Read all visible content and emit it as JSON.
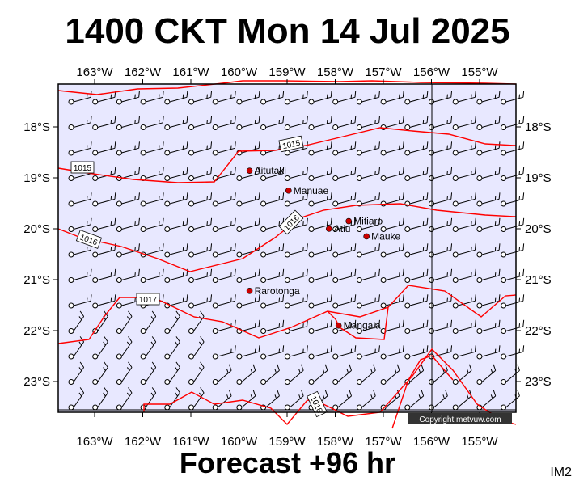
{
  "title": "1400 CKT Mon 14 Jul 2025",
  "footer": "Forecast +96 hr",
  "badge": "IM2",
  "copyright": "Copyright metvuw.com",
  "colors": {
    "background": "#e8e8ff",
    "isobar": "#ff0000",
    "barb": "#000000",
    "place": "#cc0000"
  },
  "lon_labels": [
    "163°W",
    "162°W",
    "161°W",
    "160°W",
    "159°W",
    "158°W",
    "157°W",
    "156°W",
    "155°W"
  ],
  "lon_values": [
    -163,
    -162,
    -161,
    -160,
    -159,
    -158,
    -157,
    -156,
    -155
  ],
  "lat_labels": [
    "18°S",
    "19°S",
    "20°S",
    "21°S",
    "22°S",
    "23°S"
  ],
  "lat_values": [
    -18,
    -19,
    -20,
    -21,
    -22,
    -23
  ],
  "places": [
    {
      "name": "Aitutaki",
      "lon": -159.78,
      "lat": -18.86
    },
    {
      "name": "Manuae",
      "lon": -158.97,
      "lat": -19.25
    },
    {
      "name": "Mitiaro",
      "lon": -157.72,
      "lat": -19.85
    },
    {
      "name": "Atiu",
      "lon": -158.13,
      "lat": -20.0
    },
    {
      "name": "Mauke",
      "lon": -157.35,
      "lat": -20.15
    },
    {
      "name": "Rarotonga",
      "lon": -159.78,
      "lat": -21.22
    },
    {
      "name": "Mangaia",
      "lon": -157.93,
      "lat": -21.9
    }
  ],
  "isobar_labels": [
    "1015",
    "1015",
    "1016",
    "1016",
    "1017",
    "1018"
  ]
}
